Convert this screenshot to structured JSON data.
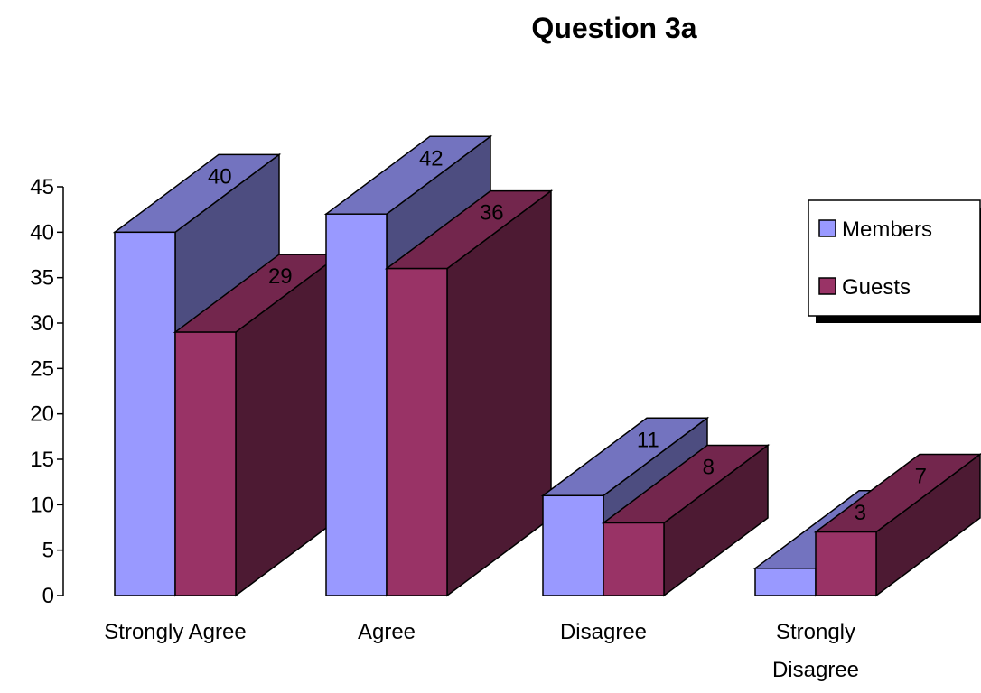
{
  "chart_data": {
    "type": "bar",
    "title": "Question 3a",
    "xlabel": "",
    "ylabel": "",
    "ylim": [
      0,
      45
    ],
    "yticks": [
      0,
      5,
      10,
      15,
      20,
      25,
      30,
      35,
      40,
      45
    ],
    "categories": [
      "Strongly Agree",
      "Agree",
      "Disagree",
      "Strongly Disagree"
    ],
    "category_label_lines": [
      [
        "Strongly Agree"
      ],
      [
        "Agree"
      ],
      [
        "Disagree"
      ],
      [
        "Strongly",
        "Disagree"
      ]
    ],
    "series": [
      {
        "name": "Members",
        "values": [
          40,
          42,
          11,
          3
        ],
        "color": "#9999FF"
      },
      {
        "name": "Guests",
        "values": [
          29,
          36,
          8,
          7
        ],
        "color": "#993366"
      }
    ],
    "legend_position": "right",
    "grid": false,
    "style": "3d-clustered-column"
  }
}
